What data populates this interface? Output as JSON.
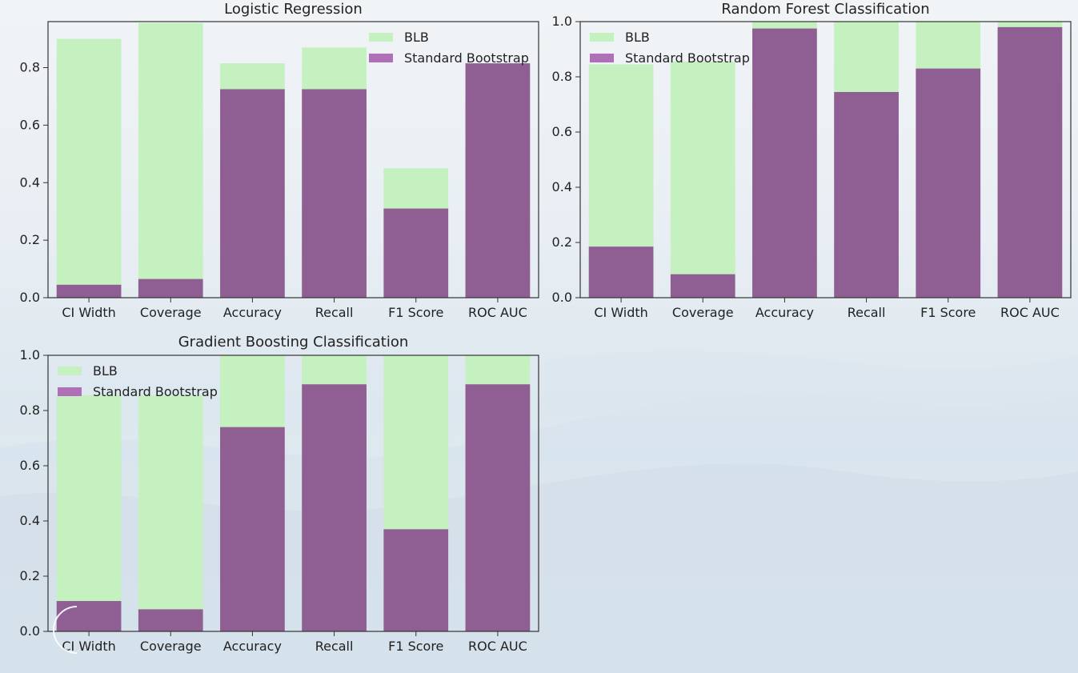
{
  "colors": {
    "blb": "#c5f0c0",
    "standard_bootstrap": "#8f5f93",
    "legend_standard_bootstrap": "#b070b7",
    "axis": "#333333"
  },
  "series_names": [
    "BLB",
    "Standard Bootstrap"
  ],
  "chart_data": [
    {
      "type": "bar",
      "title": "Logistic Regression",
      "categories": [
        "CI Width",
        "Coverage",
        "Accuracy",
        "Recall",
        "F1 Score",
        "ROC AUC"
      ],
      "series": [
        {
          "name": "BLB",
          "values": [
            0.9,
            0.955,
            0.815,
            0.87,
            0.45,
            0.815
          ]
        },
        {
          "name": "Standard Bootstrap",
          "values": [
            0.045,
            0.065,
            0.725,
            0.725,
            0.31,
            0.815
          ]
        }
      ],
      "yticks": [
        0.0,
        0.2,
        0.4,
        0.6,
        0.8
      ],
      "ylim": [
        0,
        0.96
      ],
      "legend": "top-right"
    },
    {
      "type": "bar",
      "title": "Random Forest Classification",
      "categories": [
        "CI Width",
        "Coverage",
        "Accuracy",
        "Recall",
        "F1 Score",
        "ROC AUC"
      ],
      "series": [
        {
          "name": "BLB",
          "values": [
            0.845,
            0.855,
            1.0,
            1.0,
            1.0,
            1.0
          ]
        },
        {
          "name": "Standard Bootstrap",
          "values": [
            0.185,
            0.085,
            0.975,
            0.745,
            0.83,
            0.98
          ]
        }
      ],
      "yticks": [
        0.0,
        0.2,
        0.4,
        0.6,
        0.8,
        1.0
      ],
      "ylim": [
        0,
        1.0
      ],
      "legend": "top-left"
    },
    {
      "type": "bar",
      "title": "Gradient Boosting Classification",
      "categories": [
        "CI Width",
        "Coverage",
        "Accuracy",
        "Recall",
        "F1 Score",
        "ROC AUC"
      ],
      "series": [
        {
          "name": "BLB",
          "values": [
            0.855,
            0.855,
            1.0,
            1.0,
            1.0,
            1.0
          ]
        },
        {
          "name": "Standard Bootstrap",
          "values": [
            0.11,
            0.08,
            0.74,
            0.895,
            0.37,
            0.895
          ]
        }
      ],
      "yticks": [
        0.0,
        0.2,
        0.4,
        0.6,
        0.8,
        1.0
      ],
      "ylim": [
        0,
        1.0
      ],
      "legend": "top-left"
    }
  ]
}
